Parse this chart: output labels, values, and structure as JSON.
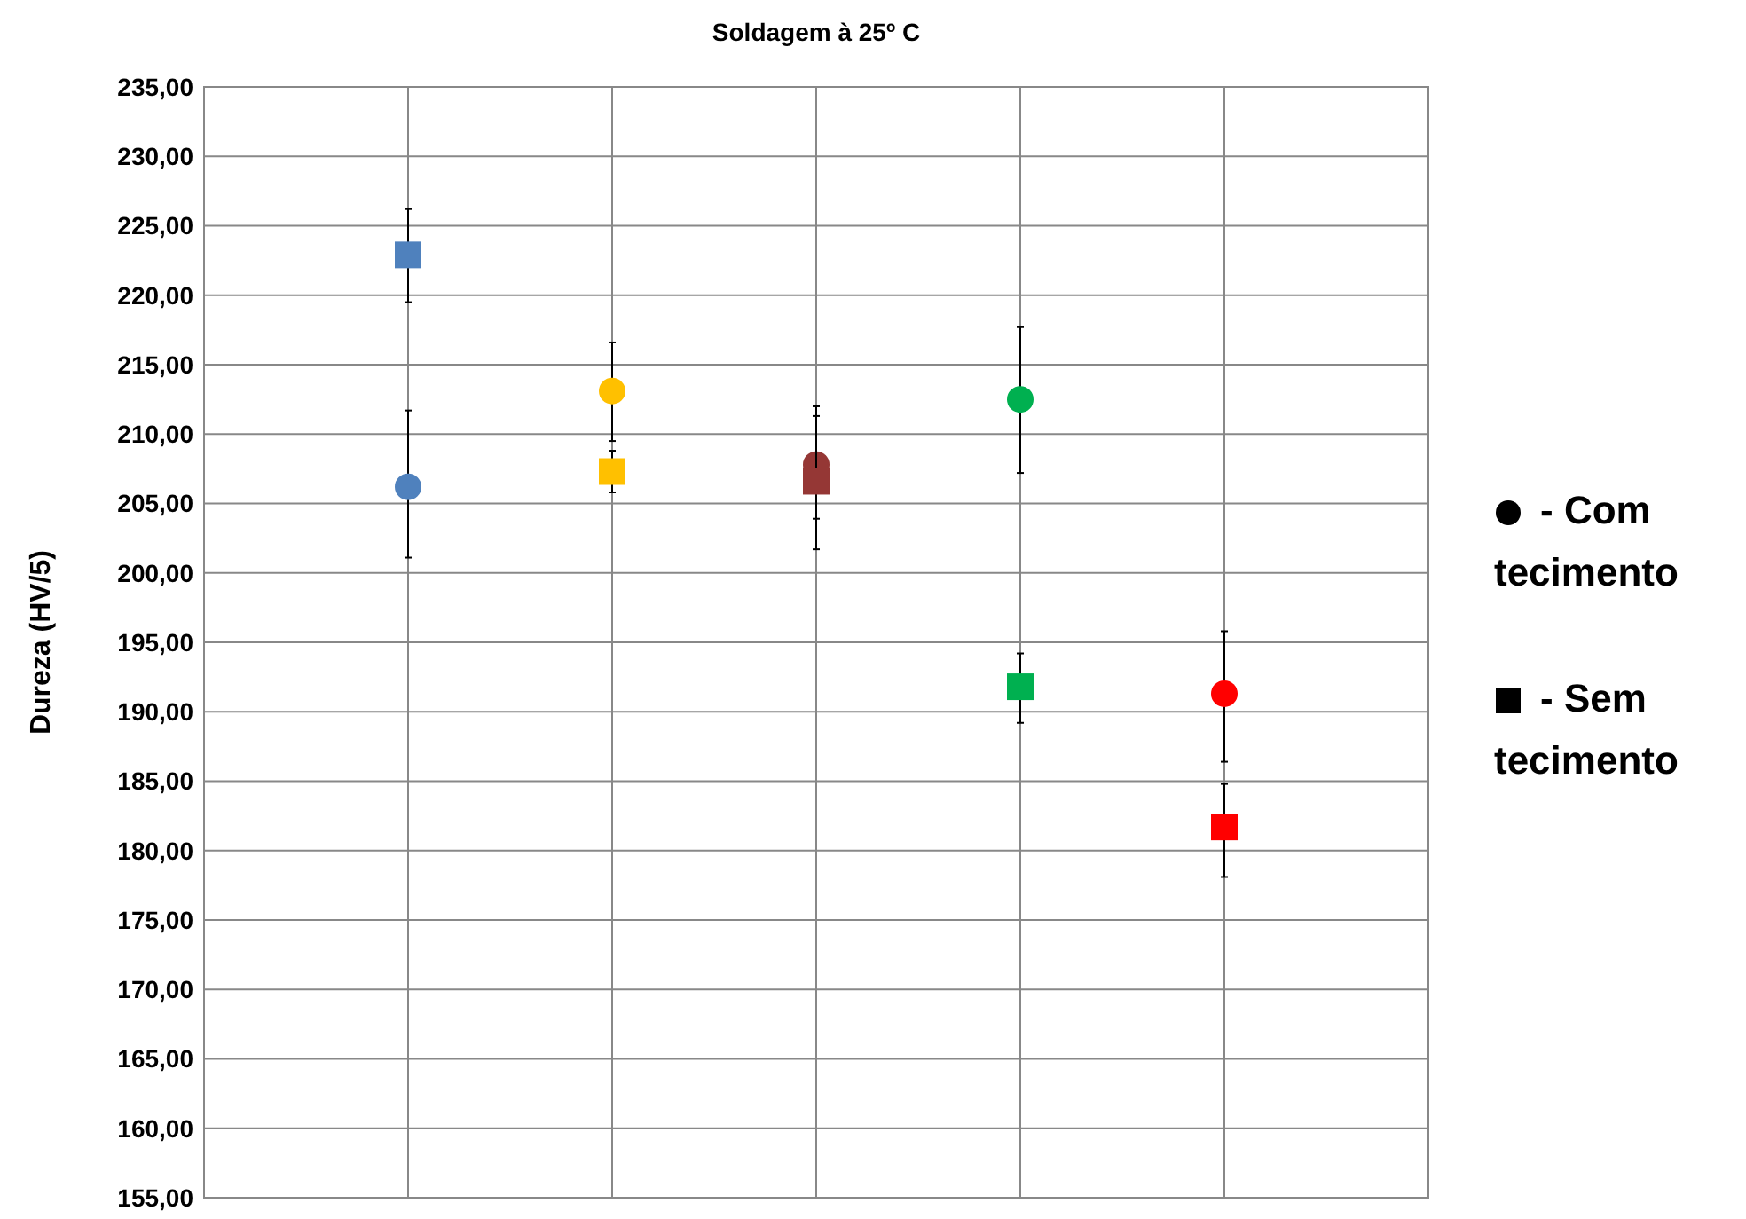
{
  "chart_data": {
    "type": "scatter",
    "title": "Soldagem à 25º C",
    "ylabel": "Dureza (HV/5)",
    "categories": [
      null,
      null,
      null,
      null,
      null
    ],
    "series": [
      {
        "marker": "circle",
        "colors": [
          "#4f81bd",
          "#ffc000",
          "#953735",
          "#00b050",
          "#ff0000"
        ],
        "values": [
          206.2,
          213.1,
          207.8,
          212.5,
          191.3
        ],
        "errors": [
          [
            201.1,
            211.7
          ],
          [
            209.5,
            216.6
          ],
          [
            203.9,
            212
          ],
          [
            207.2,
            217.7
          ],
          [
            186.4,
            195.8
          ]
        ]
      },
      {
        "marker": "square",
        "colors": [
          "#4f81bd",
          "#ffc000",
          "#953735",
          "#00b050",
          "#ff0000"
        ],
        "values": [
          222.9,
          207.3,
          206.6,
          191.8,
          181.7
        ],
        "errors": [
          [
            219.5,
            226.2
          ],
          [
            205.8,
            208.8
          ],
          [
            201.7,
            211.3
          ],
          [
            189.2,
            194.2
          ],
          [
            178.1,
            184.8
          ]
        ]
      }
    ],
    "ylim": [
      155,
      235
    ],
    "yticks": [
      {
        "value": 155,
        "label": "155,00"
      },
      {
        "value": 160,
        "label": "160,00"
      },
      {
        "value": 165,
        "label": "165,00"
      },
      {
        "value": 170,
        "label": "170,00"
      },
      {
        "value": 175,
        "label": "175,00"
      },
      {
        "value": 180,
        "label": "180,00"
      },
      {
        "value": 185,
        "label": "185,00"
      },
      {
        "value": 190,
        "label": "190,00"
      },
      {
        "value": 195,
        "label": "195,00"
      },
      {
        "value": 200,
        "label": "200,00"
      },
      {
        "value": 205,
        "label": "205,00"
      },
      {
        "value": 210,
        "label": "210,00"
      },
      {
        "value": 215,
        "label": "215,00"
      },
      {
        "value": 220,
        "label": "220,00"
      },
      {
        "value": 225,
        "label": "225,00"
      },
      {
        "value": 230,
        "label": "230,00"
      },
      {
        "value": 235,
        "label": "235,00"
      }
    ],
    "tick_labels": "y",
    "grid": true,
    "annotations": [
      "- Com tecimento",
      "- Sem tecimento"
    ]
  }
}
